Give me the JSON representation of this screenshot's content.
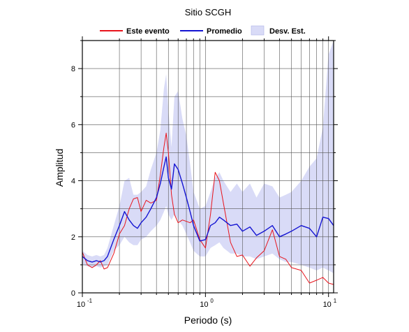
{
  "chart_data": {
    "type": "line",
    "title": "Sitio SCGH",
    "xlabel": "Periodo (s)",
    "ylabel": "Amplitud",
    "x_scale": "log",
    "xlim": [
      0.1,
      11
    ],
    "ylim": [
      0,
      9
    ],
    "x_ticks": [
      {
        "base": "10",
        "exp": "-1"
      },
      {
        "base": "10",
        "exp": "0"
      },
      {
        "base": "10",
        "exp": "1"
      }
    ],
    "x_tick_values": [
      0.1,
      1,
      10
    ],
    "y_ticks": [
      "0",
      "2",
      "4",
      "6",
      "8"
    ],
    "y_tick_values": [
      0,
      2,
      4,
      6,
      8
    ],
    "grid": true,
    "legend": {
      "placement": "top",
      "items": [
        "Este evento",
        "Promedio",
        "Desv. Est."
      ]
    },
    "colors": {
      "este_evento": "#e8141c",
      "promedio": "#1414d2",
      "desv_est": "#d9dbf7"
    },
    "x": [
      0.1,
      0.11,
      0.12,
      0.13,
      0.14,
      0.15,
      0.16,
      0.18,
      0.2,
      0.22,
      0.24,
      0.26,
      0.28,
      0.3,
      0.33,
      0.36,
      0.4,
      0.43,
      0.46,
      0.48,
      0.5,
      0.53,
      0.56,
      0.6,
      0.65,
      0.7,
      0.75,
      0.8,
      0.9,
      1.0,
      1.1,
      1.2,
      1.3,
      1.4,
      1.6,
      1.8,
      2.0,
      2.3,
      2.6,
      3.0,
      3.5,
      4.0,
      4.5,
      5.0,
      6.0,
      7.0,
      8.0,
      9.0,
      10.0,
      11.0
    ],
    "series": [
      {
        "name": "Este evento",
        "values": [
          1.45,
          1.0,
          0.9,
          1.0,
          1.15,
          0.85,
          0.9,
          1.4,
          2.1,
          2.4,
          3.0,
          3.35,
          3.4,
          2.9,
          3.3,
          3.2,
          3.3,
          4.2,
          5.2,
          5.7,
          5.0,
          3.5,
          2.8,
          2.5,
          2.6,
          2.55,
          2.5,
          2.6,
          1.9,
          1.6,
          2.8,
          4.3,
          4.0,
          3.2,
          1.8,
          1.3,
          1.35,
          0.95,
          1.25,
          1.5,
          2.25,
          1.3,
          1.2,
          0.9,
          0.8,
          0.35,
          0.45,
          0.55,
          0.35,
          0.3
        ]
      },
      {
        "name": "Promedio",
        "values": [
          1.3,
          1.15,
          1.1,
          1.15,
          1.1,
          1.15,
          1.3,
          1.9,
          2.4,
          2.9,
          2.6,
          2.4,
          2.3,
          2.5,
          2.7,
          3.0,
          3.4,
          3.9,
          4.5,
          4.85,
          4.1,
          3.7,
          4.6,
          4.4,
          3.9,
          3.4,
          2.9,
          2.4,
          1.85,
          1.9,
          2.4,
          2.5,
          2.7,
          2.6,
          2.4,
          2.45,
          2.2,
          2.35,
          2.05,
          2.2,
          2.4,
          2.0,
          2.1,
          2.2,
          2.4,
          2.3,
          2.0,
          2.7,
          2.65,
          2.4
        ]
      }
    ],
    "desv_est_band": {
      "name": "Desv. Est.",
      "upper": [
        1.5,
        1.35,
        1.3,
        1.35,
        1.3,
        1.35,
        1.6,
        2.4,
        3.1,
        4.0,
        4.1,
        3.5,
        3.5,
        3.6,
        3.8,
        4.4,
        5.0,
        5.8,
        7.3,
        7.8,
        6.5,
        5.2,
        7.0,
        7.2,
        6.2,
        5.6,
        4.6,
        3.6,
        3.0,
        3.1,
        3.6,
        4.1,
        4.3,
        4.0,
        3.6,
        3.9,
        3.6,
        3.9,
        3.4,
        3.9,
        3.8,
        3.4,
        3.5,
        3.6,
        4.0,
        4.5,
        4.8,
        5.9,
        8.5,
        9.0
      ],
      "lower": [
        1.0,
        0.95,
        0.9,
        0.95,
        0.9,
        0.95,
        1.0,
        1.5,
        1.7,
        2.0,
        1.8,
        1.7,
        1.7,
        1.9,
        2.0,
        2.2,
        2.4,
        2.6,
        2.9,
        3.1,
        2.8,
        2.6,
        2.8,
        2.6,
        2.4,
        2.1,
        1.8,
        1.5,
        1.3,
        1.3,
        1.6,
        1.7,
        1.8,
        1.6,
        1.4,
        1.4,
        1.3,
        1.3,
        1.2,
        1.3,
        1.4,
        1.2,
        1.1,
        1.1,
        1.0,
        0.9,
        0.8,
        0.9,
        0.8,
        0.7
      ]
    }
  }
}
